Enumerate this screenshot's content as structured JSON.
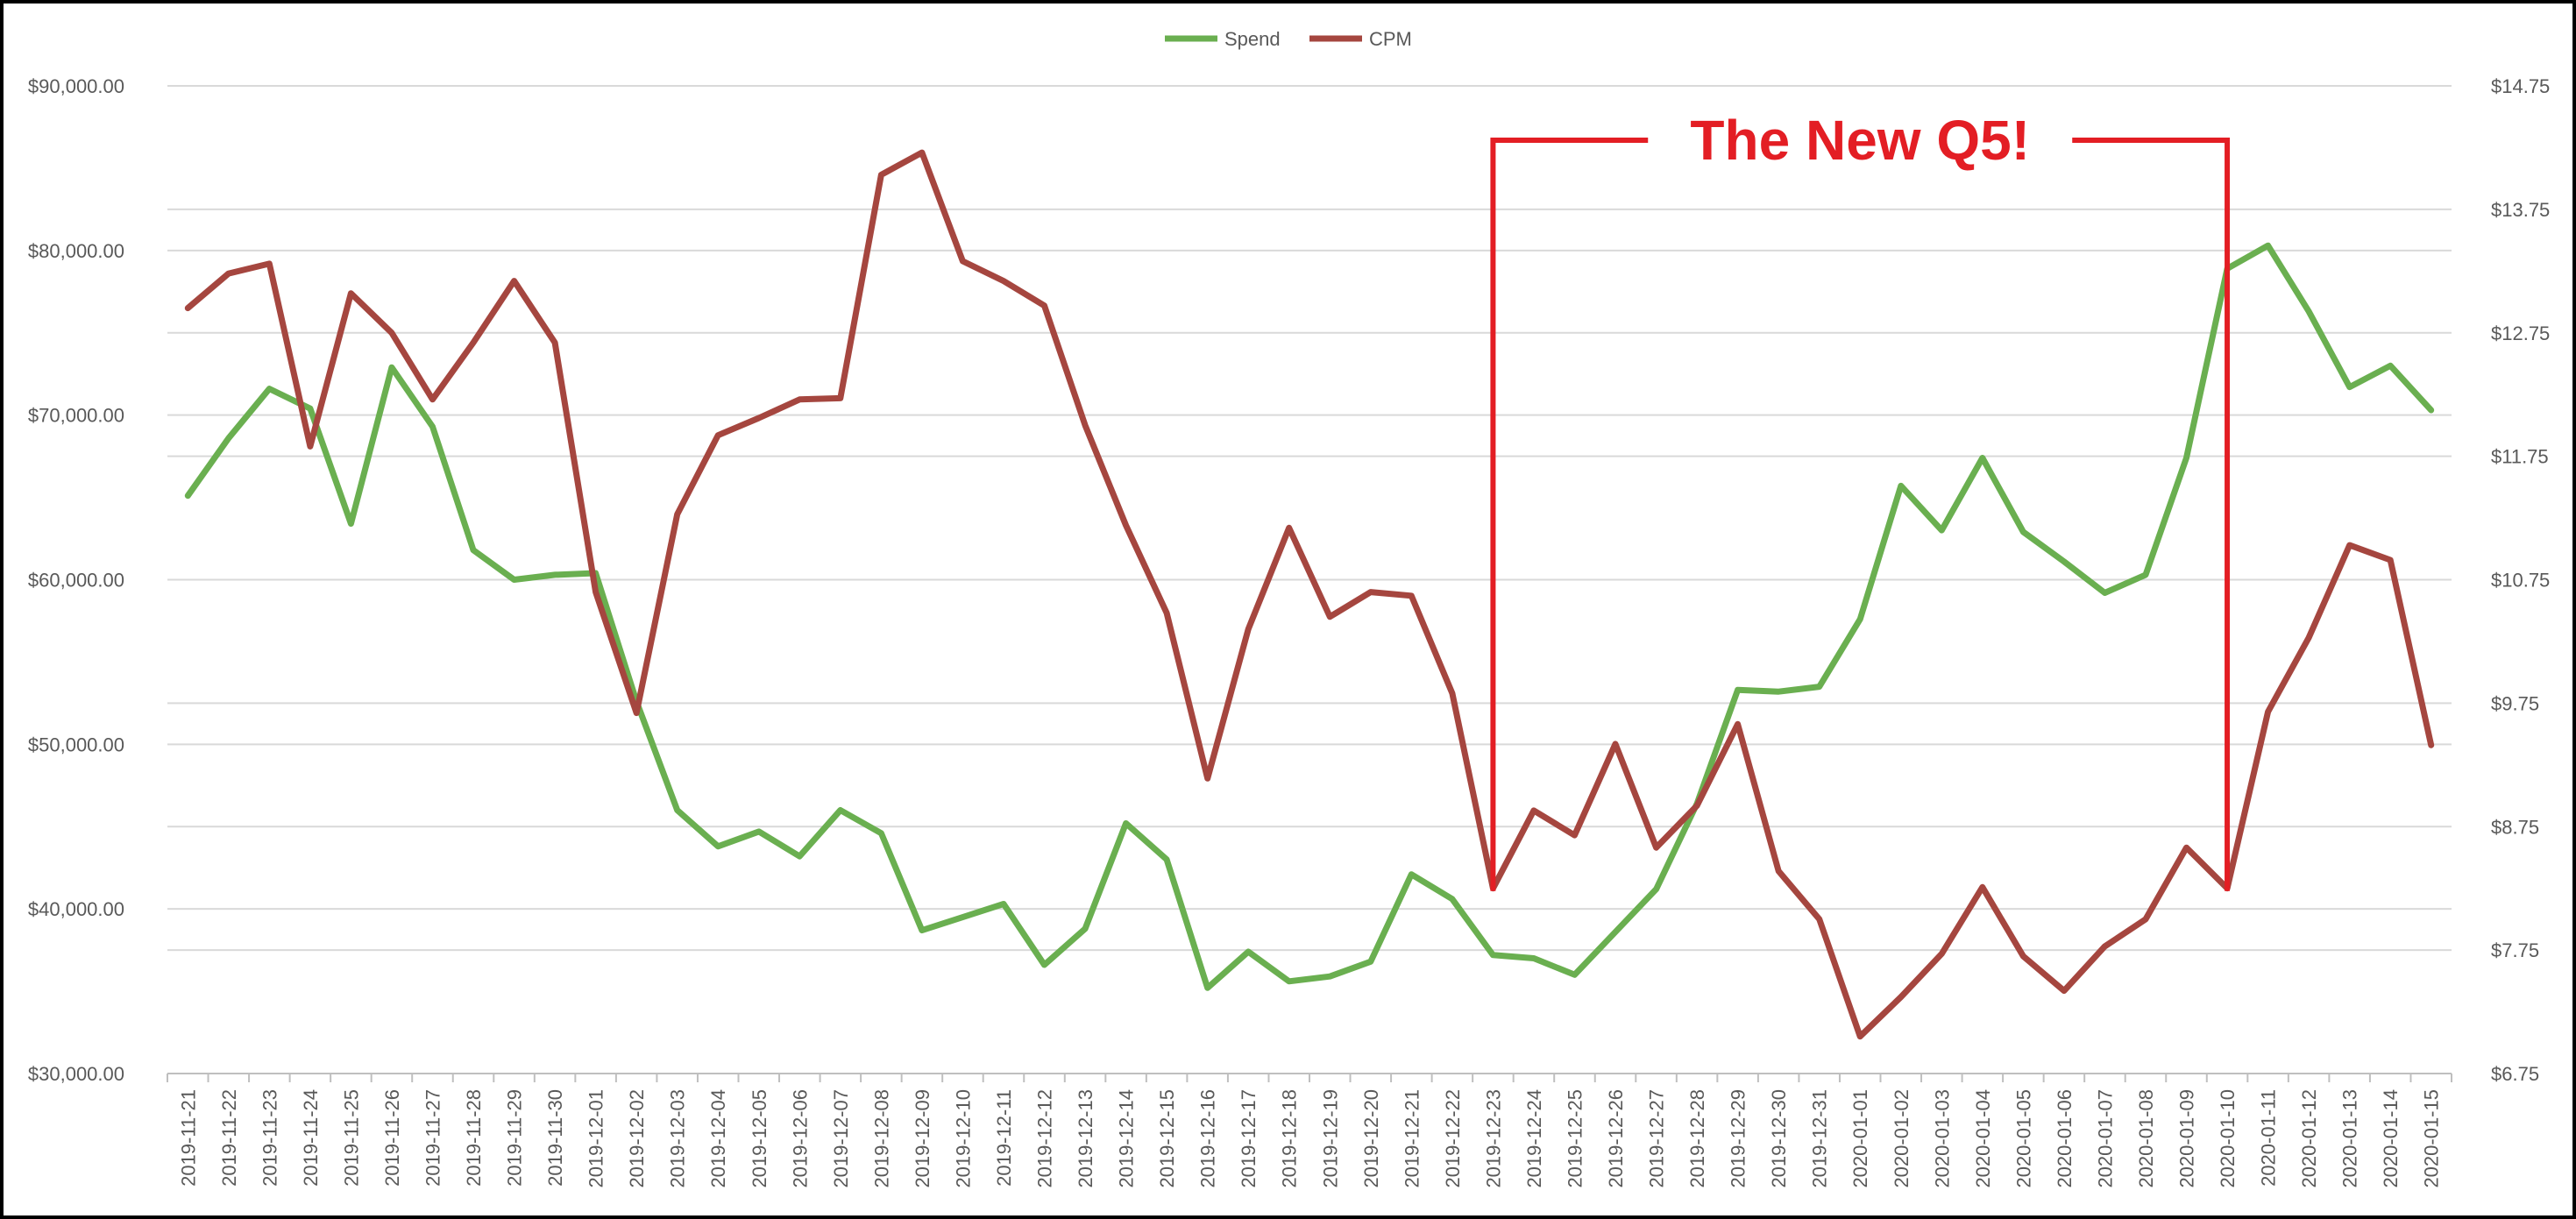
{
  "chart_data": {
    "type": "line",
    "title": "",
    "xlabel": "",
    "ylabel": "",
    "legend_position": "top-center",
    "grid": true,
    "x": [
      "2019-11-21",
      "2019-11-22",
      "2019-11-23",
      "2019-11-24",
      "2019-11-25",
      "2019-11-26",
      "2019-11-27",
      "2019-11-28",
      "2019-11-29",
      "2019-11-30",
      "2019-12-01",
      "2019-12-02",
      "2019-12-03",
      "2019-12-04",
      "2019-12-05",
      "2019-12-06",
      "2019-12-07",
      "2019-12-08",
      "2019-12-09",
      "2019-12-10",
      "2019-12-11",
      "2019-12-12",
      "2019-12-13",
      "2019-12-14",
      "2019-12-15",
      "2019-12-16",
      "2019-12-17",
      "2019-12-18",
      "2019-12-19",
      "2019-12-20",
      "2019-12-21",
      "2019-12-22",
      "2019-12-23",
      "2019-12-24",
      "2019-12-25",
      "2019-12-26",
      "2019-12-27",
      "2019-12-28",
      "2019-12-29",
      "2019-12-30",
      "2019-12-31",
      "2020-01-01",
      "2020-01-02",
      "2020-01-03",
      "2020-01-04",
      "2020-01-05",
      "2020-01-06",
      "2020-01-07",
      "2020-01-08",
      "2020-01-09",
      "2020-01-10",
      "2020-01-11",
      "2020-01-12",
      "2020-01-13",
      "2020-01-14",
      "2020-01-15"
    ],
    "left_axis": {
      "ylim": [
        30000,
        90000
      ],
      "tick_values": [
        30000,
        40000,
        50000,
        60000,
        70000,
        80000,
        90000
      ],
      "tick_labels": [
        "$30,000.00",
        "$40,000.00",
        "$50,000.00",
        "$60,000.00",
        "$70,000.00",
        "$80,000.00",
        "$90,000.00"
      ]
    },
    "right_axis": {
      "ylim": [
        6.75,
        14.75
      ],
      "tick_values": [
        6.75,
        7.75,
        8.75,
        9.75,
        10.75,
        11.75,
        12.75,
        13.75,
        14.75
      ],
      "tick_labels": [
        "$6.75",
        "$7.75",
        "$8.75",
        "$9.75",
        "$10.75",
        "$11.75",
        "$12.75",
        "$13.75",
        "$14.75"
      ]
    },
    "series": [
      {
        "name": "Spend",
        "axis": "left",
        "color": "#6aaf50",
        "values": [
          65100,
          68600,
          71600,
          70400,
          63400,
          72900,
          69300,
          61800,
          60000,
          60300,
          60400,
          52600,
          46000,
          43800,
          44700,
          43200,
          46000,
          44600,
          38700,
          39500,
          40300,
          36600,
          38800,
          45200,
          43000,
          35200,
          37400,
          35600,
          35900,
          36800,
          42100,
          40600,
          37200,
          37000,
          36000,
          38600,
          41200,
          46400,
          53300,
          53200,
          53500,
          57600,
          65700,
          63000,
          67400,
          62900,
          61100,
          59200,
          60300,
          67400,
          78900,
          80300,
          76300,
          71700,
          73000,
          70300
        ]
      },
      {
        "name": "CPM",
        "axis": "right",
        "color": "#a5463f",
        "values": [
          12.95,
          13.23,
          13.31,
          11.83,
          13.07,
          12.75,
          12.21,
          12.67,
          13.17,
          12.67,
          10.65,
          9.67,
          11.28,
          11.92,
          12.06,
          12.21,
          12.22,
          14.03,
          14.21,
          13.33,
          13.17,
          12.97,
          12.0,
          11.19,
          10.48,
          9.14,
          10.35,
          11.17,
          10.45,
          10.65,
          10.62,
          9.83,
          8.25,
          8.88,
          8.68,
          9.42,
          8.58,
          8.92,
          9.58,
          8.39,
          8.0,
          7.05,
          7.37,
          7.72,
          8.26,
          7.7,
          7.42,
          7.78,
          8.0,
          8.58,
          8.25,
          9.68,
          10.28,
          11.03,
          10.91,
          9.41
        ]
      }
    ],
    "annotations": [
      {
        "text": "The New Q5!",
        "color": "#e31e24",
        "from_x": "2019-12-23",
        "to_x": "2020-01-10"
      }
    ]
  }
}
